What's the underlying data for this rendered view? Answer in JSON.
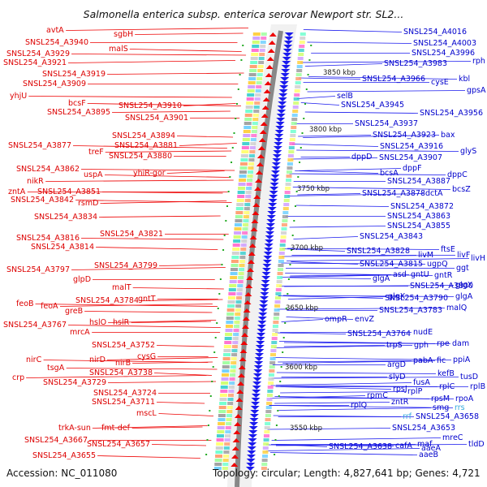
{
  "title": "Salmonella enterica subsp. enterica serovar Newport str. SL2...",
  "footer": {
    "accession": "Accession: NC_011080",
    "summary": "Topology: circular; Length: 4,827,641 bp; Genes: 4,721"
  },
  "colors": {
    "forward_strand": "#ee0000",
    "reverse_strand": "#1a1aee",
    "left_label": "#dd0000",
    "right_label": "#0000cc",
    "rna_label": "#33aadd",
    "backbone": "#888888",
    "tick": "#22aa22"
  },
  "kbp_marks": [
    "3850 kbp",
    "3800 kbp",
    "3750 kbp",
    "3700 kbp",
    "3650 kbp",
    "3600 kbp",
    "3550 kbp"
  ],
  "left_labels": [
    "avtA",
    "sgbH",
    "SNSL254_A3940",
    "SNSL254_A3929",
    "malS",
    "SNSL254_A3921",
    "SNSL254_A3919",
    "SNSL254_A3909",
    "yhjU",
    "bcsF",
    "SNSL254_A3910",
    "SNSL254_A3895",
    "SNSL254_A3901",
    "SNSL254_A3894",
    "SNSL254_A3877",
    "SNSL254_A3881",
    "treF",
    "SNSL254_A3880",
    "SNSL254_A3862",
    "uspA",
    "yhiR-gor",
    "nikR",
    "zntA",
    "SNSL254_A3851",
    "SNSL254_A3842",
    "rsmD",
    "SNSL254_A3834",
    "SNSL254_A3821",
    "SNSL254_A3816",
    "SNSL254_A3814",
    "SNSL254_A3797",
    "SNSL254_A3799",
    "glpD",
    "malT",
    "feoB",
    "feoA",
    "SNSL254_A3784",
    "gntT",
    "greB",
    "SNSL254_A3767",
    "hslO",
    "hslR",
    "mrcA",
    "SNSL254_A3752",
    "nirC",
    "nirD",
    "nirB",
    "cysG",
    "tsgA",
    "SNSL254_A3738",
    "crp",
    "SNSL254_A3729",
    "SNSL254_A3724",
    "SNSL254_A3711",
    "mscL",
    "trkA-sun",
    "fmt-def",
    "SNSL254_A3667",
    "SNSL254_A3657",
    "SNSL254_A3655"
  ],
  "right_labels": [
    "SNSL254_A4016",
    "SNSL254_A4003",
    "SNSL254_A3996",
    "rph",
    "SNSL254_A3983",
    "kbl",
    "SNSL254_A3966",
    "cysE",
    "gpsA",
    "selB",
    "SNSL254_A3945",
    "SNSL254_A3956",
    "SNSL254_A3937",
    "SNSL254_A3923",
    "bax",
    "SNSL254_A3916",
    "glyS",
    "dppD",
    "SNSL254_A3907",
    "dppF",
    "bcsA",
    "dppC",
    "SNSL254_A3887",
    "SNSL254_A3878",
    "dctA",
    "bcsZ",
    "SNSL254_A3872",
    "SNSL254_A3863",
    "SNSL254_A3855",
    "SNSL254_A3843",
    "SNSL254_A3828",
    "ftsE",
    "livM",
    "livF",
    "livH",
    "SNSL254_A3815",
    "ugpQ",
    "ggt",
    "asd",
    "gntU",
    "gntR",
    "glgA",
    "SNSL254_A3800",
    "glgX",
    "glgX",
    "SNSL254_A3790",
    "glgA",
    "SNSL254_A3783",
    "malQ",
    "ompR",
    "envZ",
    "SNSL254_A3764",
    "nudE",
    "trpS",
    "gph",
    "rpe",
    "dam",
    "argD",
    "pabA",
    "fic",
    "ppiA",
    "kefB",
    "slyD",
    "tusD",
    "fusA",
    "rpsJ",
    "rplC",
    "rplB",
    "rplP",
    "rpmC",
    "rpsM",
    "rpoA",
    "rplQ",
    "zntR",
    "smg",
    "rrs",
    "rrf",
    "SNSL254_A3658",
    "SNSL254_A3653",
    "mreC",
    "SNSL254_A3638",
    "cafA",
    "maf",
    "tldD",
    "aaeA",
    "aaeB"
  ]
}
